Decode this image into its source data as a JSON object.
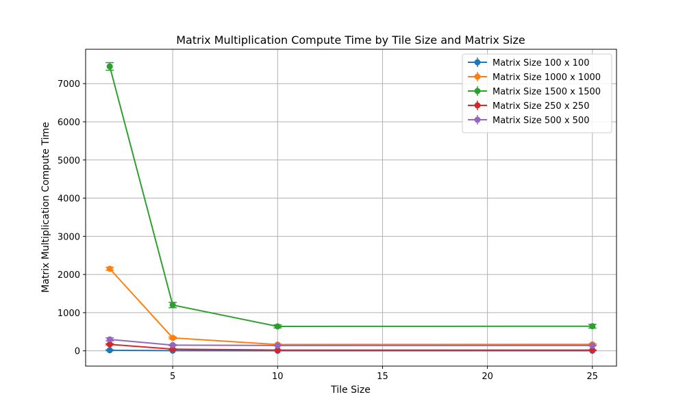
{
  "chart_data": {
    "type": "line",
    "title": "Matrix Multiplication Compute Time by Tile Size and Matrix Size",
    "xlabel": "Tile Size",
    "ylabel": "Matrix Multiplication Compute Time",
    "x": [
      2,
      5,
      10,
      25
    ],
    "xlim": [
      0.85,
      26.15
    ],
    "ylim": [
      -400,
      7900
    ],
    "xticks": [
      5,
      10,
      15,
      20,
      25
    ],
    "yticks": [
      0,
      1000,
      2000,
      3000,
      4000,
      5000,
      6000,
      7000
    ],
    "grid": true,
    "legend_position": "top-right",
    "series": [
      {
        "name": "Matrix Size 100 x 100",
        "color": "#1f77b4",
        "values": [
          15,
          5,
          3,
          3
        ],
        "errors": [
          10,
          5,
          3,
          3
        ]
      },
      {
        "name": "Matrix Size 1000 x 1000",
        "color": "#ff7f0e",
        "values": [
          2150,
          340,
          165,
          170
        ],
        "errors": [
          40,
          25,
          15,
          15
        ]
      },
      {
        "name": "Matrix Size 1500 x 1500",
        "color": "#2ca02c",
        "values": [
          7450,
          1200,
          640,
          645
        ],
        "errors": [
          100,
          70,
          40,
          50
        ]
      },
      {
        "name": "Matrix Size 250 x 250",
        "color": "#d62728",
        "values": [
          170,
          45,
          20,
          20
        ],
        "errors": [
          15,
          8,
          5,
          5
        ]
      },
      {
        "name": "Matrix Size 500 x 500",
        "color": "#9467bd",
        "values": [
          300,
          150,
          140,
          140
        ],
        "errors": [
          40,
          15,
          10,
          10
        ]
      }
    ]
  }
}
